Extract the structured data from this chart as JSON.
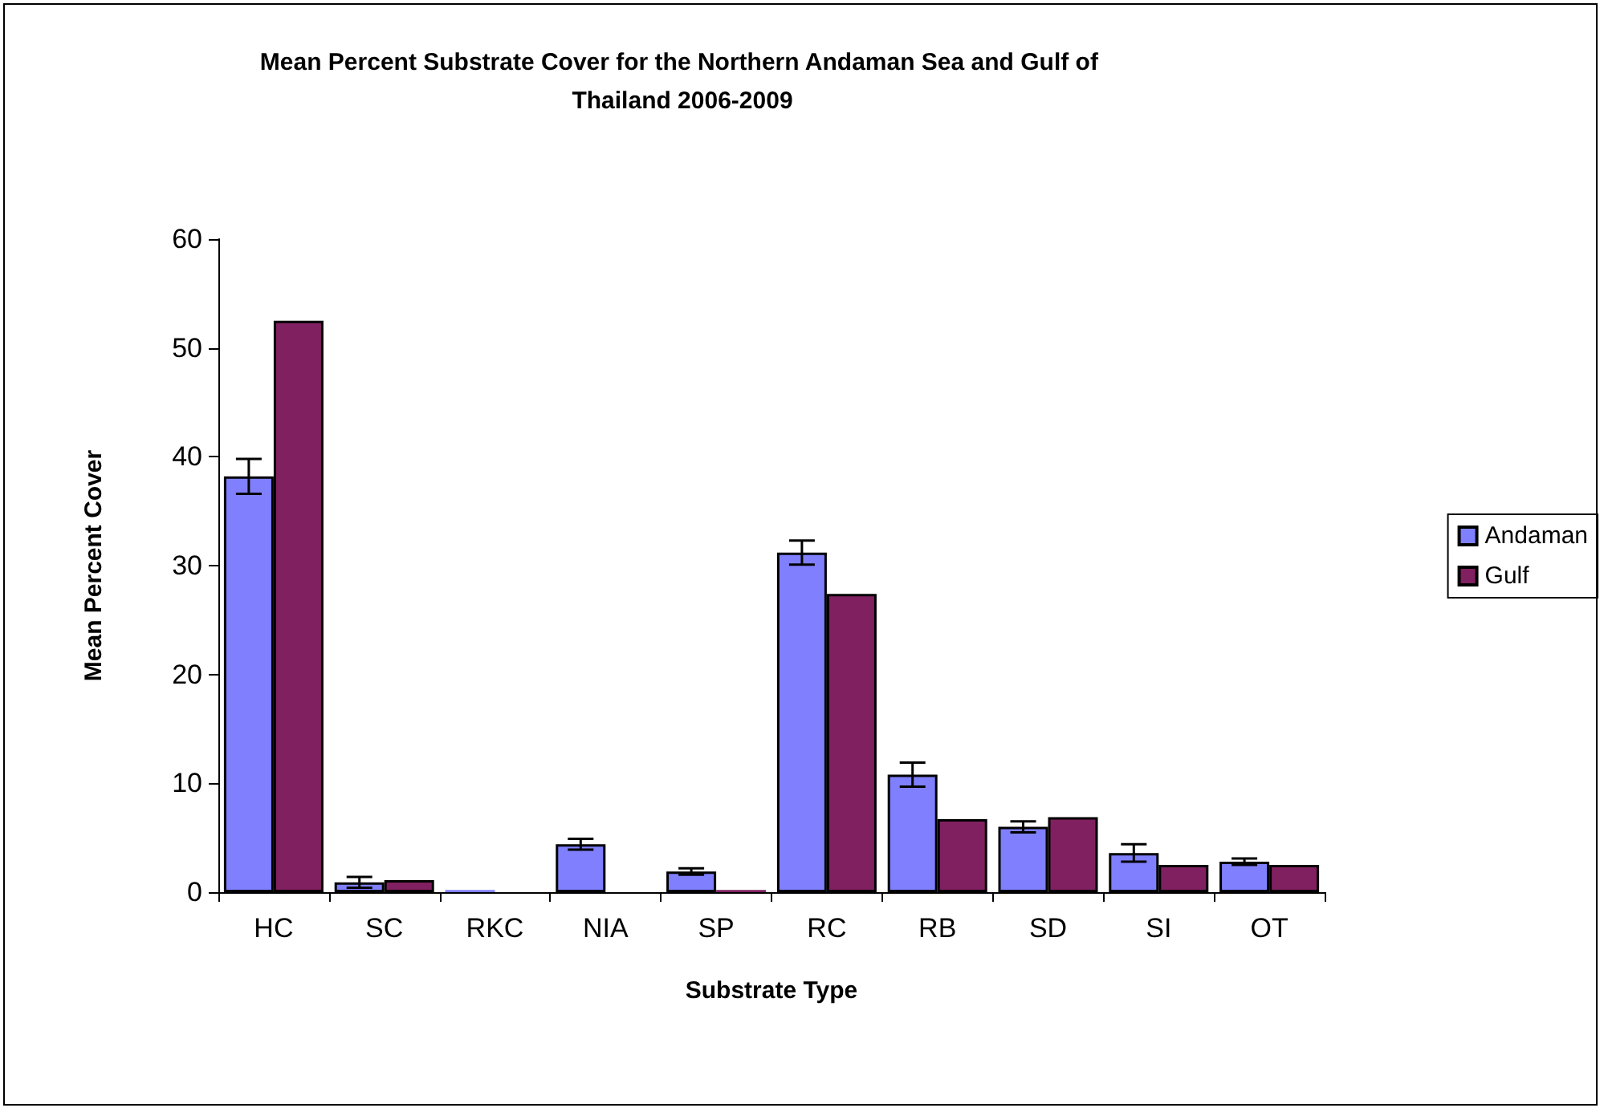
{
  "chart_data": {
    "type": "bar",
    "title": "Mean Percent Substrate Cover for the Northern Andaman Sea and Gulf of Thailand 2006-2009",
    "xlabel": "Substrate Type",
    "ylabel": "Mean Percent Cover",
    "categories": [
      "HC",
      "SC",
      "RKC",
      "NIA",
      "SP",
      "RC",
      "RB",
      "SD",
      "SI",
      "OT"
    ],
    "series": [
      {
        "name": "Andaman",
        "color": "#8080ff",
        "values": [
          38.2,
          0.9,
          0.2,
          4.4,
          1.9,
          31.2,
          10.8,
          6.0,
          3.6,
          2.8
        ],
        "errors": [
          1.6,
          0.5,
          null,
          0.5,
          0.3,
          1.1,
          1.1,
          0.5,
          0.8,
          0.3
        ]
      },
      {
        "name": "Gulf",
        "color": "#802060",
        "values": [
          52.5,
          1.1,
          null,
          null,
          0.2,
          27.4,
          6.7,
          6.9,
          2.5,
          2.5
        ]
      }
    ],
    "ylim": [
      0,
      60
    ],
    "yticks": [
      0,
      10,
      20,
      30,
      40,
      50,
      60
    ],
    "grid": false,
    "legend": "right"
  }
}
